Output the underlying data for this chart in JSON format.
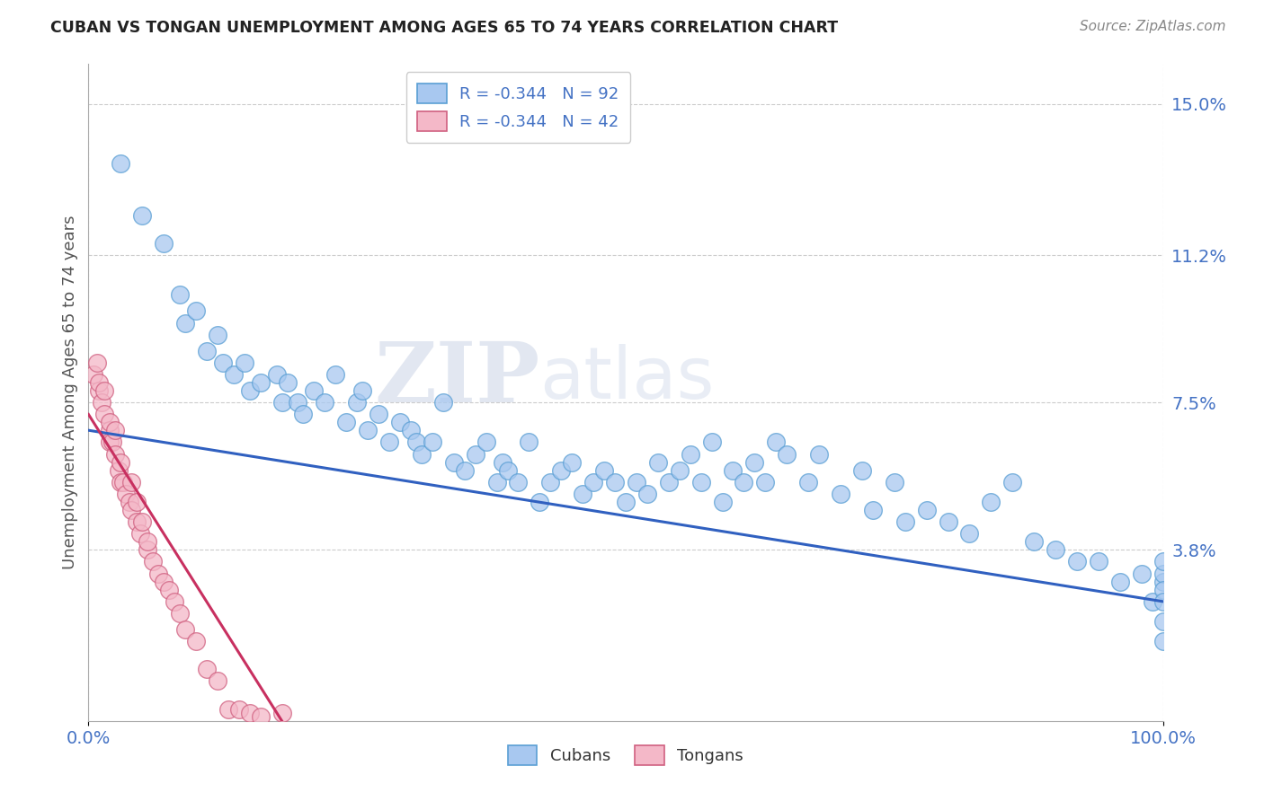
{
  "title": "CUBAN VS TONGAN UNEMPLOYMENT AMONG AGES 65 TO 74 YEARS CORRELATION CHART",
  "source_text": "Source: ZipAtlas.com",
  "ylabel": "Unemployment Among Ages 65 to 74 years",
  "xlim": [
    0,
    100
  ],
  "ylim": [
    -0.5,
    16.0
  ],
  "yticks": [
    3.8,
    7.5,
    11.2,
    15.0
  ],
  "xticks": [
    0,
    100
  ],
  "xticklabels": [
    "0.0%",
    "100.0%"
  ],
  "yticklabels": [
    "3.8%",
    "7.5%",
    "11.2%",
    "15.0%"
  ],
  "cuban_color": "#a8c8f0",
  "cuban_edge": "#5a9fd4",
  "tongan_color": "#f4b8c8",
  "tongan_edge": "#d06080",
  "cuban_line_color": "#3060c0",
  "tongan_line_color": "#c83060",
  "watermark_zip": "ZIP",
  "watermark_atlas": "atlas",
  "cuban_x": [
    3.0,
    5.0,
    7.0,
    8.5,
    9.0,
    10.0,
    11.0,
    12.0,
    12.5,
    13.5,
    14.5,
    15.0,
    16.0,
    17.5,
    18.0,
    18.5,
    19.5,
    20.0,
    21.0,
    22.0,
    23.0,
    24.0,
    25.0,
    25.5,
    26.0,
    27.0,
    28.0,
    29.0,
    30.0,
    30.5,
    31.0,
    32.0,
    33.0,
    34.0,
    35.0,
    36.0,
    37.0,
    38.0,
    38.5,
    39.0,
    40.0,
    41.0,
    42.0,
    43.0,
    44.0,
    45.0,
    46.0,
    47.0,
    48.0,
    49.0,
    50.0,
    51.0,
    52.0,
    53.0,
    54.0,
    55.0,
    56.0,
    57.0,
    58.0,
    59.0,
    60.0,
    61.0,
    62.0,
    63.0,
    64.0,
    65.0,
    67.0,
    68.0,
    70.0,
    72.0,
    73.0,
    75.0,
    76.0,
    78.0,
    80.0,
    82.0,
    84.0,
    86.0,
    88.0,
    90.0,
    92.0,
    94.0,
    96.0,
    98.0,
    99.0,
    100.0,
    100.0,
    100.0,
    100.0,
    100.0,
    100.0,
    100.0
  ],
  "cuban_y": [
    13.5,
    12.2,
    11.5,
    10.2,
    9.5,
    9.8,
    8.8,
    9.2,
    8.5,
    8.2,
    8.5,
    7.8,
    8.0,
    8.2,
    7.5,
    8.0,
    7.5,
    7.2,
    7.8,
    7.5,
    8.2,
    7.0,
    7.5,
    7.8,
    6.8,
    7.2,
    6.5,
    7.0,
    6.8,
    6.5,
    6.2,
    6.5,
    7.5,
    6.0,
    5.8,
    6.2,
    6.5,
    5.5,
    6.0,
    5.8,
    5.5,
    6.5,
    5.0,
    5.5,
    5.8,
    6.0,
    5.2,
    5.5,
    5.8,
    5.5,
    5.0,
    5.5,
    5.2,
    6.0,
    5.5,
    5.8,
    6.2,
    5.5,
    6.5,
    5.0,
    5.8,
    5.5,
    6.0,
    5.5,
    6.5,
    6.2,
    5.5,
    6.2,
    5.2,
    5.8,
    4.8,
    5.5,
    4.5,
    4.8,
    4.5,
    4.2,
    5.0,
    5.5,
    4.0,
    3.8,
    3.5,
    3.5,
    3.0,
    3.2,
    2.5,
    3.0,
    3.2,
    3.5,
    2.8,
    2.5,
    1.5,
    2.0
  ],
  "tongan_x": [
    0.5,
    0.8,
    1.0,
    1.0,
    1.2,
    1.5,
    1.5,
    2.0,
    2.0,
    2.0,
    2.2,
    2.5,
    2.5,
    2.8,
    3.0,
    3.0,
    3.2,
    3.5,
    3.8,
    4.0,
    4.0,
    4.5,
    4.5,
    4.8,
    5.0,
    5.5,
    5.5,
    6.0,
    6.5,
    7.0,
    7.5,
    8.0,
    8.5,
    9.0,
    10.0,
    11.0,
    12.0,
    13.0,
    14.0,
    15.0,
    16.0,
    18.0
  ],
  "tongan_y": [
    8.2,
    8.5,
    7.8,
    8.0,
    7.5,
    7.2,
    7.8,
    6.8,
    7.0,
    6.5,
    6.5,
    6.2,
    6.8,
    5.8,
    6.0,
    5.5,
    5.5,
    5.2,
    5.0,
    5.5,
    4.8,
    4.5,
    5.0,
    4.2,
    4.5,
    3.8,
    4.0,
    3.5,
    3.2,
    3.0,
    2.8,
    2.5,
    2.2,
    1.8,
    1.5,
    0.8,
    0.5,
    -0.2,
    -0.2,
    -0.3,
    -0.4,
    -0.3
  ],
  "cuban_line_x0": 0,
  "cuban_line_y0": 6.8,
  "cuban_line_x1": 100,
  "cuban_line_y1": 2.5,
  "tongan_line_x0": 0,
  "tongan_line_y0": 7.2,
  "tongan_line_x1": 18,
  "tongan_line_y1": -0.5
}
